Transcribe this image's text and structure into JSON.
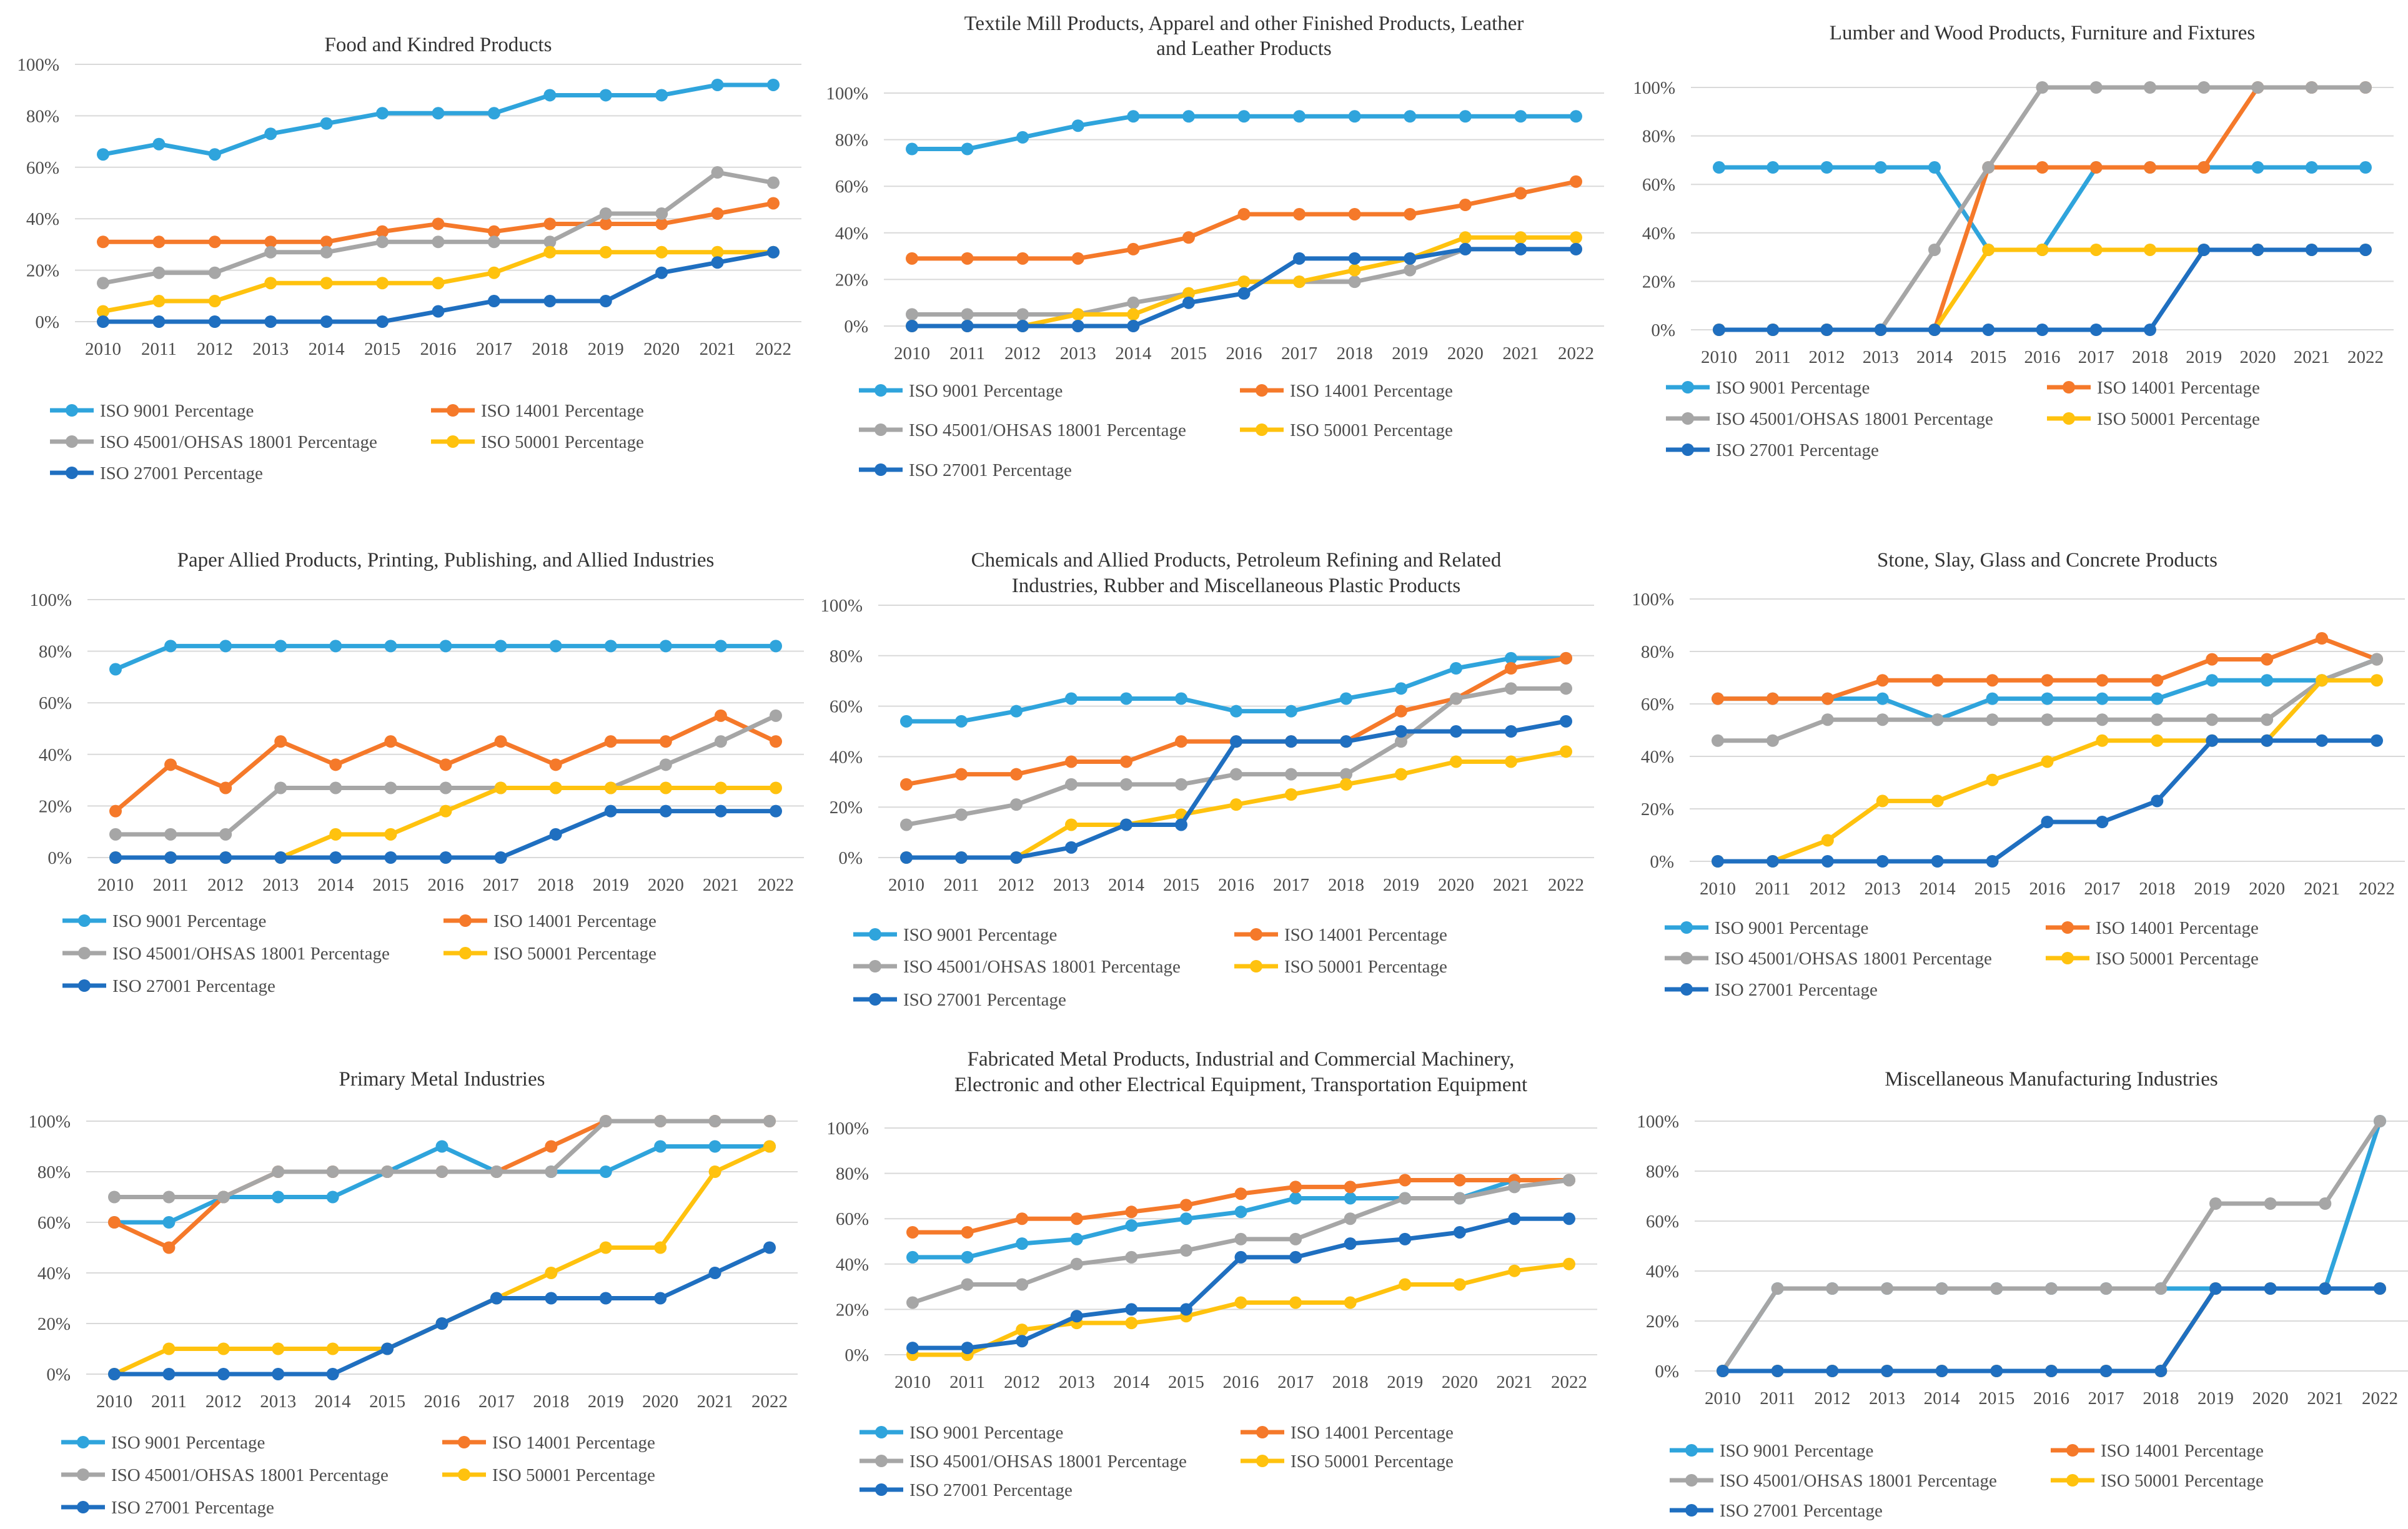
{
  "colors": {
    "ISO 9001 Percentage": "#2fa4dc",
    "ISO 14001 Percentage": "#f5792a",
    "ISO 45001/OHSAS 18001 Percentage": "#a6a6a6",
    "ISO 50001 Percentage": "#ffc20e",
    "ISO 27001 Percentage": "#1f6fc0"
  },
  "legend_order": [
    "ISO 9001 Percentage",
    "ISO 14001 Percentage",
    "ISO 45001/OHSAS 18001 Percentage",
    "ISO 50001 Percentage",
    "ISO 27001 Percentage"
  ],
  "chart_data": [
    {
      "type": "line",
      "title": [
        "Food and Kindred Products"
      ],
      "categories": [
        "2010",
        "2011",
        "2012",
        "2013",
        "2014",
        "2015",
        "2016",
        "2017",
        "2018",
        "2019",
        "2020",
        "2021",
        "2022"
      ],
      "yticks": [
        "0%",
        "20%",
        "40%",
        "60%",
        "80%",
        "100%"
      ],
      "ylim": [
        0,
        100
      ],
      "series": [
        {
          "name": "ISO 9001 Percentage",
          "values": [
            65,
            69,
            65,
            73,
            77,
            81,
            81,
            81,
            88,
            88,
            88,
            92,
            92
          ]
        },
        {
          "name": "ISO 14001 Percentage",
          "values": [
            31,
            31,
            31,
            31,
            31,
            35,
            38,
            35,
            38,
            38,
            38,
            42,
            46
          ]
        },
        {
          "name": "ISO 45001/OHSAS 18001 Percentage",
          "values": [
            15,
            19,
            19,
            27,
            27,
            31,
            31,
            31,
            31,
            42,
            42,
            58,
            54
          ]
        },
        {
          "name": "ISO 50001 Percentage",
          "values": [
            4,
            8,
            8,
            15,
            15,
            15,
            15,
            19,
            27,
            27,
            27,
            27,
            27
          ]
        },
        {
          "name": "ISO 27001 Percentage",
          "values": [
            0,
            0,
            0,
            0,
            0,
            0,
            4,
            8,
            8,
            8,
            19,
            23,
            27
          ]
        }
      ]
    },
    {
      "type": "line",
      "title": [
        "Textile Mill Products, Apparel and other Finished Products, Leather",
        "and Leather Products"
      ],
      "categories": [
        "2010",
        "2011",
        "2012",
        "2013",
        "2014",
        "2015",
        "2016",
        "2017",
        "2018",
        "2019",
        "2020",
        "2021",
        "2022"
      ],
      "yticks": [
        "0%",
        "20%",
        "40%",
        "60%",
        "80%",
        "100%"
      ],
      "ylim": [
        0,
        100
      ],
      "series": [
        {
          "name": "ISO 9001 Percentage",
          "values": [
            76,
            76,
            81,
            86,
            90,
            90,
            90,
            90,
            90,
            90,
            90,
            90,
            90
          ]
        },
        {
          "name": "ISO 14001 Percentage",
          "values": [
            29,
            29,
            29,
            29,
            33,
            38,
            48,
            48,
            48,
            48,
            52,
            57,
            62
          ]
        },
        {
          "name": "ISO 45001/OHSAS 18001 Percentage",
          "values": [
            5,
            5,
            5,
            5,
            10,
            14,
            19,
            19,
            19,
            24,
            33,
            33,
            33
          ]
        },
        {
          "name": "ISO 50001 Percentage",
          "values": [
            0,
            0,
            0,
            5,
            5,
            14,
            19,
            19,
            24,
            29,
            38,
            38,
            38
          ]
        },
        {
          "name": "ISO 27001 Percentage",
          "values": [
            0,
            0,
            0,
            0,
            0,
            10,
            14,
            29,
            29,
            29,
            33,
            33,
            33
          ]
        }
      ]
    },
    {
      "type": "line",
      "title": [
        "Lumber and Wood Products, Furniture and Fixtures"
      ],
      "categories": [
        "2010",
        "2011",
        "2012",
        "2013",
        "2014",
        "2015",
        "2016",
        "2017",
        "2018",
        "2019",
        "2020",
        "2021",
        "2022"
      ],
      "yticks": [
        "0%",
        "20%",
        "40%",
        "60%",
        "80%",
        "100%"
      ],
      "ylim": [
        0,
        100
      ],
      "series": [
        {
          "name": "ISO 9001 Percentage",
          "values": [
            67,
            67,
            67,
            67,
            67,
            33,
            33,
            67,
            67,
            67,
            67,
            67,
            67
          ]
        },
        {
          "name": "ISO 14001 Percentage",
          "values": [
            0,
            0,
            0,
            0,
            0,
            67,
            67,
            67,
            67,
            67,
            100,
            100,
            100
          ]
        },
        {
          "name": "ISO 45001/OHSAS 18001 Percentage",
          "values": [
            0,
            0,
            0,
            0,
            33,
            67,
            100,
            100,
            100,
            100,
            100,
            100,
            100
          ]
        },
        {
          "name": "ISO 50001 Percentage",
          "values": [
            0,
            0,
            0,
            0,
            0,
            33,
            33,
            33,
            33,
            33,
            33,
            33,
            33
          ]
        },
        {
          "name": "ISO 27001 Percentage",
          "values": [
            0,
            0,
            0,
            0,
            0,
            0,
            0,
            0,
            0,
            33,
            33,
            33,
            33
          ]
        }
      ]
    },
    {
      "type": "line",
      "title": [
        "Paper Allied Products, Printing, Publishing, and Allied Industries"
      ],
      "categories": [
        "2010",
        "2011",
        "2012",
        "2013",
        "2014",
        "2015",
        "2016",
        "2017",
        "2018",
        "2019",
        "2020",
        "2021",
        "2022"
      ],
      "yticks": [
        "0%",
        "20%",
        "40%",
        "60%",
        "80%",
        "100%"
      ],
      "ylim": [
        0,
        100
      ],
      "series": [
        {
          "name": "ISO 9001 Percentage",
          "values": [
            73,
            82,
            82,
            82,
            82,
            82,
            82,
            82,
            82,
            82,
            82,
            82,
            82
          ]
        },
        {
          "name": "ISO 14001 Percentage",
          "values": [
            18,
            36,
            27,
            45,
            36,
            45,
            36,
            45,
            36,
            45,
            45,
            55,
            45
          ]
        },
        {
          "name": "ISO 45001/OHSAS 18001 Percentage",
          "values": [
            9,
            9,
            9,
            27,
            27,
            27,
            27,
            27,
            27,
            27,
            36,
            45,
            55
          ]
        },
        {
          "name": "ISO 50001 Percentage",
          "values": [
            0,
            0,
            0,
            0,
            9,
            9,
            18,
            27,
            27,
            27,
            27,
            27,
            27
          ]
        },
        {
          "name": "ISO 27001 Percentage",
          "values": [
            0,
            0,
            0,
            0,
            0,
            0,
            0,
            0,
            9,
            18,
            18,
            18,
            18
          ]
        }
      ]
    },
    {
      "type": "line",
      "title": [
        "Chemicals and Allied Products, Petroleum Refining and Related",
        "Industries, Rubber and Miscellaneous Plastic Products"
      ],
      "categories": [
        "2010",
        "2011",
        "2012",
        "2013",
        "2014",
        "2015",
        "2016",
        "2017",
        "2018",
        "2019",
        "2020",
        "2021",
        "2022"
      ],
      "yticks": [
        "0%",
        "20%",
        "40%",
        "60%",
        "80%",
        "100%"
      ],
      "ylim": [
        0,
        100
      ],
      "series": [
        {
          "name": "ISO 9001 Percentage",
          "values": [
            54,
            54,
            58,
            63,
            63,
            63,
            58,
            58,
            63,
            67,
            75,
            79,
            79
          ]
        },
        {
          "name": "ISO 14001 Percentage",
          "values": [
            29,
            33,
            33,
            38,
            38,
            46,
            46,
            46,
            46,
            58,
            63,
            75,
            79
          ]
        },
        {
          "name": "ISO 45001/OHSAS 18001 Percentage",
          "values": [
            13,
            17,
            21,
            29,
            29,
            29,
            33,
            33,
            33,
            46,
            63,
            67,
            67
          ]
        },
        {
          "name": "ISO 50001 Percentage",
          "values": [
            0,
            0,
            0,
            13,
            13,
            17,
            21,
            25,
            29,
            33,
            38,
            38,
            42
          ]
        },
        {
          "name": "ISO 27001 Percentage",
          "values": [
            0,
            0,
            0,
            4,
            13,
            13,
            46,
            46,
            46,
            50,
            50,
            50,
            54
          ]
        }
      ]
    },
    {
      "type": "line",
      "title": [
        "Stone, Slay, Glass and Concrete Products"
      ],
      "categories": [
        "2010",
        "2011",
        "2012",
        "2013",
        "2014",
        "2015",
        "2016",
        "2017",
        "2018",
        "2019",
        "2020",
        "2021",
        "2022"
      ],
      "yticks": [
        "0%",
        "20%",
        "40%",
        "60%",
        "80%",
        "100%"
      ],
      "ylim": [
        0,
        100
      ],
      "series": [
        {
          "name": "ISO 9001 Percentage",
          "values": [
            62,
            62,
            62,
            62,
            54,
            62,
            62,
            62,
            62,
            69,
            69,
            69,
            77
          ]
        },
        {
          "name": "ISO 14001 Percentage",
          "values": [
            62,
            62,
            62,
            69,
            69,
            69,
            69,
            69,
            69,
            77,
            77,
            85,
            77
          ]
        },
        {
          "name": "ISO 45001/OHSAS 18001 Percentage",
          "values": [
            46,
            46,
            54,
            54,
            54,
            54,
            54,
            54,
            54,
            54,
            54,
            69,
            77
          ]
        },
        {
          "name": "ISO 50001 Percentage",
          "values": [
            0,
            0,
            8,
            23,
            23,
            31,
            38,
            46,
            46,
            46,
            46,
            69,
            69
          ]
        },
        {
          "name": "ISO 27001 Percentage",
          "values": [
            0,
            0,
            0,
            0,
            0,
            0,
            15,
            15,
            23,
            46,
            46,
            46,
            46
          ]
        }
      ]
    },
    {
      "type": "line",
      "title": [
        "Primary Metal Industries"
      ],
      "categories": [
        "2010",
        "2011",
        "2012",
        "2013",
        "2014",
        "2015",
        "2016",
        "2017",
        "2018",
        "2019",
        "2020",
        "2021",
        "2022"
      ],
      "yticks": [
        "0%",
        "20%",
        "40%",
        "60%",
        "80%",
        "100%"
      ],
      "ylim": [
        0,
        100
      ],
      "series": [
        {
          "name": "ISO 9001 Percentage",
          "values": [
            60,
            60,
            70,
            70,
            70,
            80,
            90,
            80,
            80,
            80,
            90,
            90,
            90
          ]
        },
        {
          "name": "ISO 14001 Percentage",
          "values": [
            60,
            50,
            70,
            80,
            80,
            80,
            80,
            80,
            90,
            100,
            100,
            100,
            100
          ]
        },
        {
          "name": "ISO 45001/OHSAS 18001 Percentage",
          "values": [
            70,
            70,
            70,
            80,
            80,
            80,
            80,
            80,
            80,
            100,
            100,
            100,
            100
          ]
        },
        {
          "name": "ISO 50001 Percentage",
          "values": [
            0,
            10,
            10,
            10,
            10,
            10,
            20,
            30,
            40,
            50,
            50,
            80,
            90
          ]
        },
        {
          "name": "ISO 27001 Percentage",
          "values": [
            0,
            0,
            0,
            0,
            0,
            10,
            20,
            30,
            30,
            30,
            30,
            40,
            50
          ]
        }
      ]
    },
    {
      "type": "line",
      "title": [
        "Fabricated Metal Products, Industrial and Commercial Machinery,",
        "Electronic and other Electrical Equipment, Transportation Equipment"
      ],
      "categories": [
        "2010",
        "2011",
        "2012",
        "2013",
        "2014",
        "2015",
        "2016",
        "2017",
        "2018",
        "2019",
        "2020",
        "2021",
        "2022"
      ],
      "yticks": [
        "0%",
        "20%",
        "40%",
        "60%",
        "80%",
        "100%"
      ],
      "ylim": [
        0,
        100
      ],
      "series": [
        {
          "name": "ISO 9001 Percentage",
          "values": [
            43,
            43,
            49,
            51,
            57,
            60,
            63,
            69,
            69,
            69,
            69,
            77,
            77
          ]
        },
        {
          "name": "ISO 14001 Percentage",
          "values": [
            54,
            54,
            60,
            60,
            63,
            66,
            71,
            74,
            74,
            77,
            77,
            77,
            77
          ]
        },
        {
          "name": "ISO 45001/OHSAS 18001 Percentage",
          "values": [
            23,
            31,
            31,
            40,
            43,
            46,
            51,
            51,
            60,
            69,
            69,
            74,
            77
          ]
        },
        {
          "name": "ISO 50001 Percentage",
          "values": [
            0,
            0,
            11,
            14,
            14,
            17,
            23,
            23,
            23,
            31,
            31,
            37,
            40
          ]
        },
        {
          "name": "ISO 27001 Percentage",
          "values": [
            3,
            3,
            6,
            17,
            20,
            20,
            43,
            43,
            49,
            51,
            54,
            60,
            60
          ]
        }
      ]
    },
    {
      "type": "line",
      "title": [
        "Miscellaneous Manufacturing Industries"
      ],
      "categories": [
        "2010",
        "2011",
        "2012",
        "2013",
        "2014",
        "2015",
        "2016",
        "2017",
        "2018",
        "2019",
        "2020",
        "2021",
        "2022"
      ],
      "yticks": [
        "0%",
        "20%",
        "40%",
        "60%",
        "80%",
        "100%"
      ],
      "ylim": [
        0,
        100
      ],
      "series": [
        {
          "name": "ISO 9001 Percentage",
          "values": [
            0,
            33,
            33,
            33,
            33,
            33,
            33,
            33,
            33,
            33,
            33,
            33,
            100
          ]
        },
        {
          "name": "ISO 14001 Percentage",
          "values": [
            0,
            0,
            0,
            0,
            0,
            0,
            0,
            0,
            0,
            33,
            33,
            33,
            33
          ]
        },
        {
          "name": "ISO 45001/OHSAS 18001 Percentage",
          "values": [
            0,
            33,
            33,
            33,
            33,
            33,
            33,
            33,
            33,
            67,
            67,
            67,
            100
          ]
        },
        {
          "name": "ISO 50001 Percentage",
          "values": [
            0,
            0,
            0,
            0,
            0,
            0,
            0,
            0,
            0,
            33,
            33,
            33,
            33
          ]
        },
        {
          "name": "ISO 27001 Percentage",
          "values": [
            0,
            0,
            0,
            0,
            0,
            0,
            0,
            0,
            0,
            33,
            33,
            33,
            33
          ]
        }
      ]
    }
  ]
}
